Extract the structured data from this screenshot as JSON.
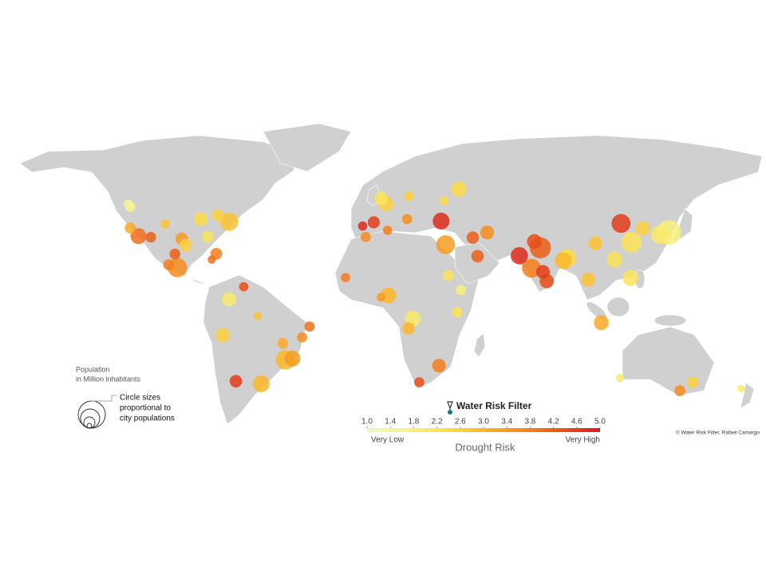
{
  "map": {
    "legend": {
      "title": "Population",
      "subtitle": "in Million inhabitants",
      "note": [
        "Circle sizes",
        "proportional to",
        "city populations"
      ]
    },
    "brand": "Water Risk Filter",
    "scale": {
      "title": "Drought Risk",
      "low_label": "Very Low",
      "high_label": "Very High",
      "lim": [
        1,
        5
      ],
      "ticks": [
        {
          "value": 1,
          "label": "1.0"
        },
        {
          "value": 1.4,
          "label": "1.4"
        },
        {
          "value": 1.8,
          "label": "1.8"
        },
        {
          "value": 2.2,
          "label": "2.2"
        },
        {
          "value": 2.6,
          "label": "2.6"
        },
        {
          "value": 3,
          "label": "3.0"
        },
        {
          "value": 3.4,
          "label": "3.4"
        },
        {
          "value": 3.8,
          "label": "3.8"
        },
        {
          "value": 4.2,
          "label": "4.2"
        },
        {
          "value": 4.6,
          "label": "4.6"
        },
        {
          "value": 5,
          "label": "5.0"
        }
      ],
      "colors": [
        "#eef7c0",
        "#f6f58a",
        "#fde04a",
        "#fbb72a",
        "#f5891e",
        "#eb5418",
        "#d7191c"
      ]
    },
    "credit": "© Water Risk Filter, Rafael Camargo",
    "cities": [
      {
        "lon": -118,
        "lat": 34,
        "risk": 4.0,
        "population": 13
      },
      {
        "lon": -122,
        "lat": 37.8,
        "risk": 3.2,
        "population": 5
      },
      {
        "lon": -122,
        "lat": 47.6,
        "risk": 1.6,
        "population": 4
      },
      {
        "lon": -123,
        "lat": 49,
        "risk": 1.5,
        "population": 2.5
      },
      {
        "lon": -105,
        "lat": 39.7,
        "risk": 2.8,
        "population": 3
      },
      {
        "lon": -112,
        "lat": 33.5,
        "risk": 4.2,
        "population": 4.5
      },
      {
        "lon": -97,
        "lat": 32.8,
        "risk": 3.4,
        "population": 7
      },
      {
        "lon": -95,
        "lat": 29.8,
        "risk": 2.6,
        "population": 7
      },
      {
        "lon": -87.6,
        "lat": 41.9,
        "risk": 2.4,
        "population": 9
      },
      {
        "lon": -79.4,
        "lat": 43.7,
        "risk": 2.6,
        "population": 6
      },
      {
        "lon": -74,
        "lat": 40.7,
        "risk": 2.8,
        "population": 19
      },
      {
        "lon": -84.4,
        "lat": 33.7,
        "risk": 2.2,
        "population": 6
      },
      {
        "lon": -80.2,
        "lat": 25.8,
        "risk": 3.8,
        "population": 6
      },
      {
        "lon": -99.1,
        "lat": 19.4,
        "risk": 3.6,
        "population": 21
      },
      {
        "lon": -103.3,
        "lat": 20.7,
        "risk": 3.8,
        "population": 5
      },
      {
        "lon": -100.3,
        "lat": 25.7,
        "risk": 4.2,
        "population": 4.7
      },
      {
        "lon": -82.4,
        "lat": 23.1,
        "risk": 4.0,
        "population": 2
      },
      {
        "lon": -74,
        "lat": 4.7,
        "risk": 2.0,
        "population": 10
      },
      {
        "lon": -66.9,
        "lat": 10.5,
        "risk": 4.4,
        "population": 3
      },
      {
        "lon": -77,
        "lat": -12,
        "risk": 2.6,
        "population": 10
      },
      {
        "lon": -70.7,
        "lat": -33.4,
        "risk": 4.6,
        "population": 7
      },
      {
        "lon": -58.4,
        "lat": -34.6,
        "risk": 3.0,
        "population": 15
      },
      {
        "lon": -46.6,
        "lat": -23.5,
        "risk": 3.0,
        "population": 21
      },
      {
        "lon": -43.2,
        "lat": -22.9,
        "risk": 3.4,
        "population": 13
      },
      {
        "lon": -38.5,
        "lat": -13,
        "risk": 3.6,
        "population": 4
      },
      {
        "lon": -34.9,
        "lat": -8,
        "risk": 4.0,
        "population": 4
      },
      {
        "lon": -60,
        "lat": -3.1,
        "risk": 2.8,
        "population": 2
      },
      {
        "lon": -47.9,
        "lat": -15.8,
        "risk": 3.2,
        "population": 4.5
      },
      {
        "lon": -0.1,
        "lat": 51.5,
        "risk": 2.2,
        "population": 9
      },
      {
        "lon": 2.35,
        "lat": 48.9,
        "risk": 2.6,
        "population": 11
      },
      {
        "lon": -3.7,
        "lat": 40.4,
        "risk": 4.6,
        "population": 6.5
      },
      {
        "lon": -9.1,
        "lat": 38.7,
        "risk": 4.8,
        "population": 3
      },
      {
        "lon": 12.5,
        "lat": 41.9,
        "risk": 3.6,
        "population": 4
      },
      {
        "lon": 13.4,
        "lat": 52.5,
        "risk": 2.6,
        "population": 3.5
      },
      {
        "lon": 37.6,
        "lat": 55.8,
        "risk": 2.4,
        "population": 12
      },
      {
        "lon": 29,
        "lat": 41,
        "risk": 4.8,
        "population": 15
      },
      {
        "lon": 30.5,
        "lat": 50.4,
        "risk": 2.4,
        "population": 3
      },
      {
        "lon": 31.2,
        "lat": 30,
        "risk": 3.4,
        "population": 20
      },
      {
        "lon": 3,
        "lat": 36.7,
        "risk": 3.8,
        "population": 3
      },
      {
        "lon": -7.6,
        "lat": 33.6,
        "risk": 3.6,
        "population": 4
      },
      {
        "lon": 3.4,
        "lat": 6.5,
        "risk": 3.0,
        "population": 13
      },
      {
        "lon": -0.2,
        "lat": 5.6,
        "risk": 3.4,
        "population": 2.5
      },
      {
        "lon": -17.4,
        "lat": 14.7,
        "risk": 3.8,
        "population": 3
      },
      {
        "lon": 15.3,
        "lat": -4.3,
        "risk": 2.0,
        "population": 13
      },
      {
        "lon": 36.8,
        "lat": -1.3,
        "risk": 2.2,
        "population": 4.5
      },
      {
        "lon": 38.7,
        "lat": 9,
        "risk": 1.8,
        "population": 4
      },
      {
        "lon": 32.5,
        "lat": 15.6,
        "risk": 2.2,
        "population": 5
      },
      {
        "lon": 28,
        "lat": -26.2,
        "risk": 3.8,
        "population": 9
      },
      {
        "lon": 18.4,
        "lat": -33.9,
        "risk": 4.4,
        "population": 4
      },
      {
        "lon": 13.2,
        "lat": -8.8,
        "risk": 3.0,
        "population": 7
      },
      {
        "lon": 46.7,
        "lat": 24.7,
        "risk": 4.2,
        "population": 7
      },
      {
        "lon": 51.4,
        "lat": 35.7,
        "risk": 3.6,
        "population": 9
      },
      {
        "lon": 44.4,
        "lat": 33.3,
        "risk": 4.2,
        "population": 7
      },
      {
        "lon": 67,
        "lat": 24.9,
        "risk": 4.8,
        "population": 16
      },
      {
        "lon": 74.3,
        "lat": 31.5,
        "risk": 4.4,
        "population": 11
      },
      {
        "lon": 77.2,
        "lat": 28.6,
        "risk": 4.2,
        "population": 26
      },
      {
        "lon": 72.9,
        "lat": 19.1,
        "risk": 3.8,
        "population": 20
      },
      {
        "lon": 88.4,
        "lat": 22.6,
        "risk": 3.0,
        "population": 15
      },
      {
        "lon": 90.4,
        "lat": 23.8,
        "risk": 2.4,
        "population": 18
      },
      {
        "lon": 80.3,
        "lat": 13.1,
        "risk": 4.4,
        "population": 10
      },
      {
        "lon": 78.5,
        "lat": 17.4,
        "risk": 4.6,
        "population": 9
      },
      {
        "lon": 100.5,
        "lat": 13.8,
        "risk": 2.8,
        "population": 10
      },
      {
        "lon": 106.8,
        "lat": -6.2,
        "risk": 3.2,
        "population": 11
      },
      {
        "lon": 121,
        "lat": 14.6,
        "risk": 2.2,
        "population": 13
      },
      {
        "lon": 116.4,
        "lat": 39.9,
        "risk": 4.6,
        "population": 20
      },
      {
        "lon": 121.5,
        "lat": 31.2,
        "risk": 2.2,
        "population": 24
      },
      {
        "lon": 113.3,
        "lat": 23.1,
        "risk": 2.2,
        "population": 13
      },
      {
        "lon": 104,
        "lat": 30.7,
        "risk": 2.8,
        "population": 9
      },
      {
        "lon": 127,
        "lat": 37.6,
        "risk": 2.6,
        "population": 10
      },
      {
        "lon": 139.7,
        "lat": 35.7,
        "risk": 1.8,
        "population": 37
      },
      {
        "lon": 135.5,
        "lat": 34.7,
        "risk": 2.0,
        "population": 19
      },
      {
        "lon": 151.2,
        "lat": -33.9,
        "risk": 2.6,
        "population": 5
      },
      {
        "lon": 145,
        "lat": -37.8,
        "risk": 3.6,
        "population": 5
      },
      {
        "lon": 115.9,
        "lat": -31.9,
        "risk": 2.0,
        "population": 2
      },
      {
        "lon": 174.8,
        "lat": -36.8,
        "risk": 2.0,
        "population": 1.6
      }
    ]
  }
}
